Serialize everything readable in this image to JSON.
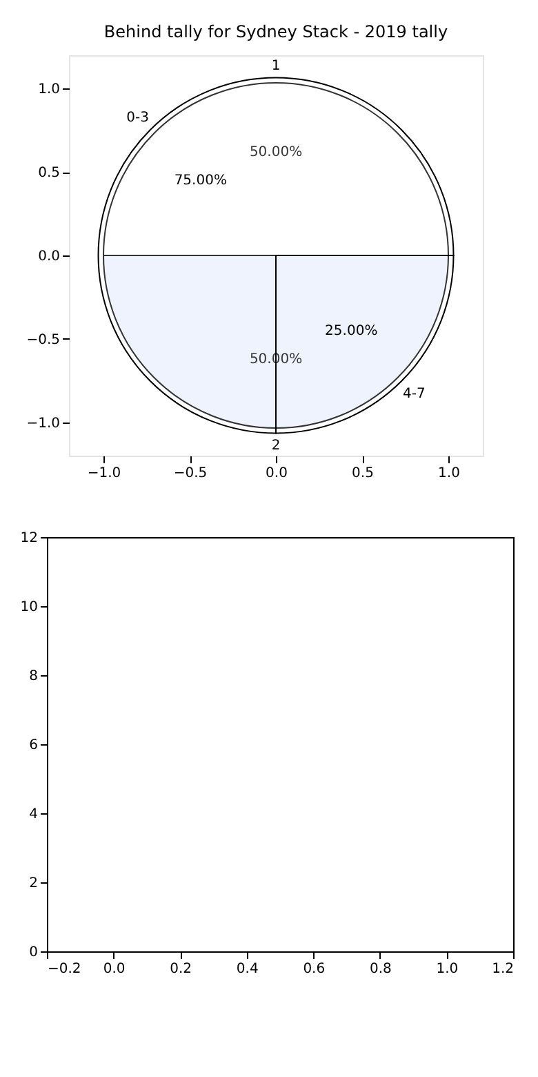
{
  "chart_data": [
    {
      "type": "pie",
      "title": "Behind tally for Sydney Stack - 2019 tally",
      "categories": [
        "1",
        "2"
      ],
      "values": [
        50,
        50
      ],
      "colors": [
        "#ffffff",
        "#eaf0fd"
      ],
      "value_labels": [
        "50.00%",
        "50.00%"
      ]
    },
    {
      "type": "pie",
      "categories": [
        "0-3",
        "4-7"
      ],
      "values": [
        75,
        25
      ],
      "colors": [
        "#ffffff",
        "#ffffff"
      ],
      "value_labels": [
        "75.00%",
        "25.00%"
      ]
    },
    {
      "type": "scatter",
      "xlim": [
        -1.2,
        1.2
      ],
      "ylim": [
        -1.2,
        1.2
      ],
      "xticks": [
        {
          "value": -1,
          "label": "−1.0"
        },
        {
          "value": -0.5,
          "label": "−0.5"
        },
        {
          "value": 0,
          "label": "0.0"
        },
        {
          "value": 0.5,
          "label": "0.5"
        },
        {
          "value": 1,
          "label": "1.0"
        }
      ],
      "yticks": [
        {
          "value": -1,
          "label": "−1.0"
        },
        {
          "value": -0.5,
          "label": "−0.5"
        },
        {
          "value": 0,
          "label": "0.0"
        },
        {
          "value": 0.5,
          "label": "0.5"
        },
        {
          "value": 1,
          "label": "1.0"
        }
      ]
    },
    {
      "type": "scatter",
      "xlim": [
        -0.2,
        1.2
      ],
      "ylim": [
        0,
        12
      ],
      "xticks": [
        {
          "value": -0.2,
          "label": "−0.2"
        },
        {
          "value": 0,
          "label": "0.0"
        },
        {
          "value": 0.2,
          "label": "0.2"
        },
        {
          "value": 0.4,
          "label": "0.4"
        },
        {
          "value": 0.6,
          "label": "0.6"
        },
        {
          "value": 0.8,
          "label": "0.8"
        },
        {
          "value": 1,
          "label": "1.0"
        },
        {
          "value": 1.2,
          "label": "1.2"
        }
      ],
      "yticks": [
        0,
        2,
        4,
        6,
        8,
        10,
        12
      ]
    }
  ]
}
